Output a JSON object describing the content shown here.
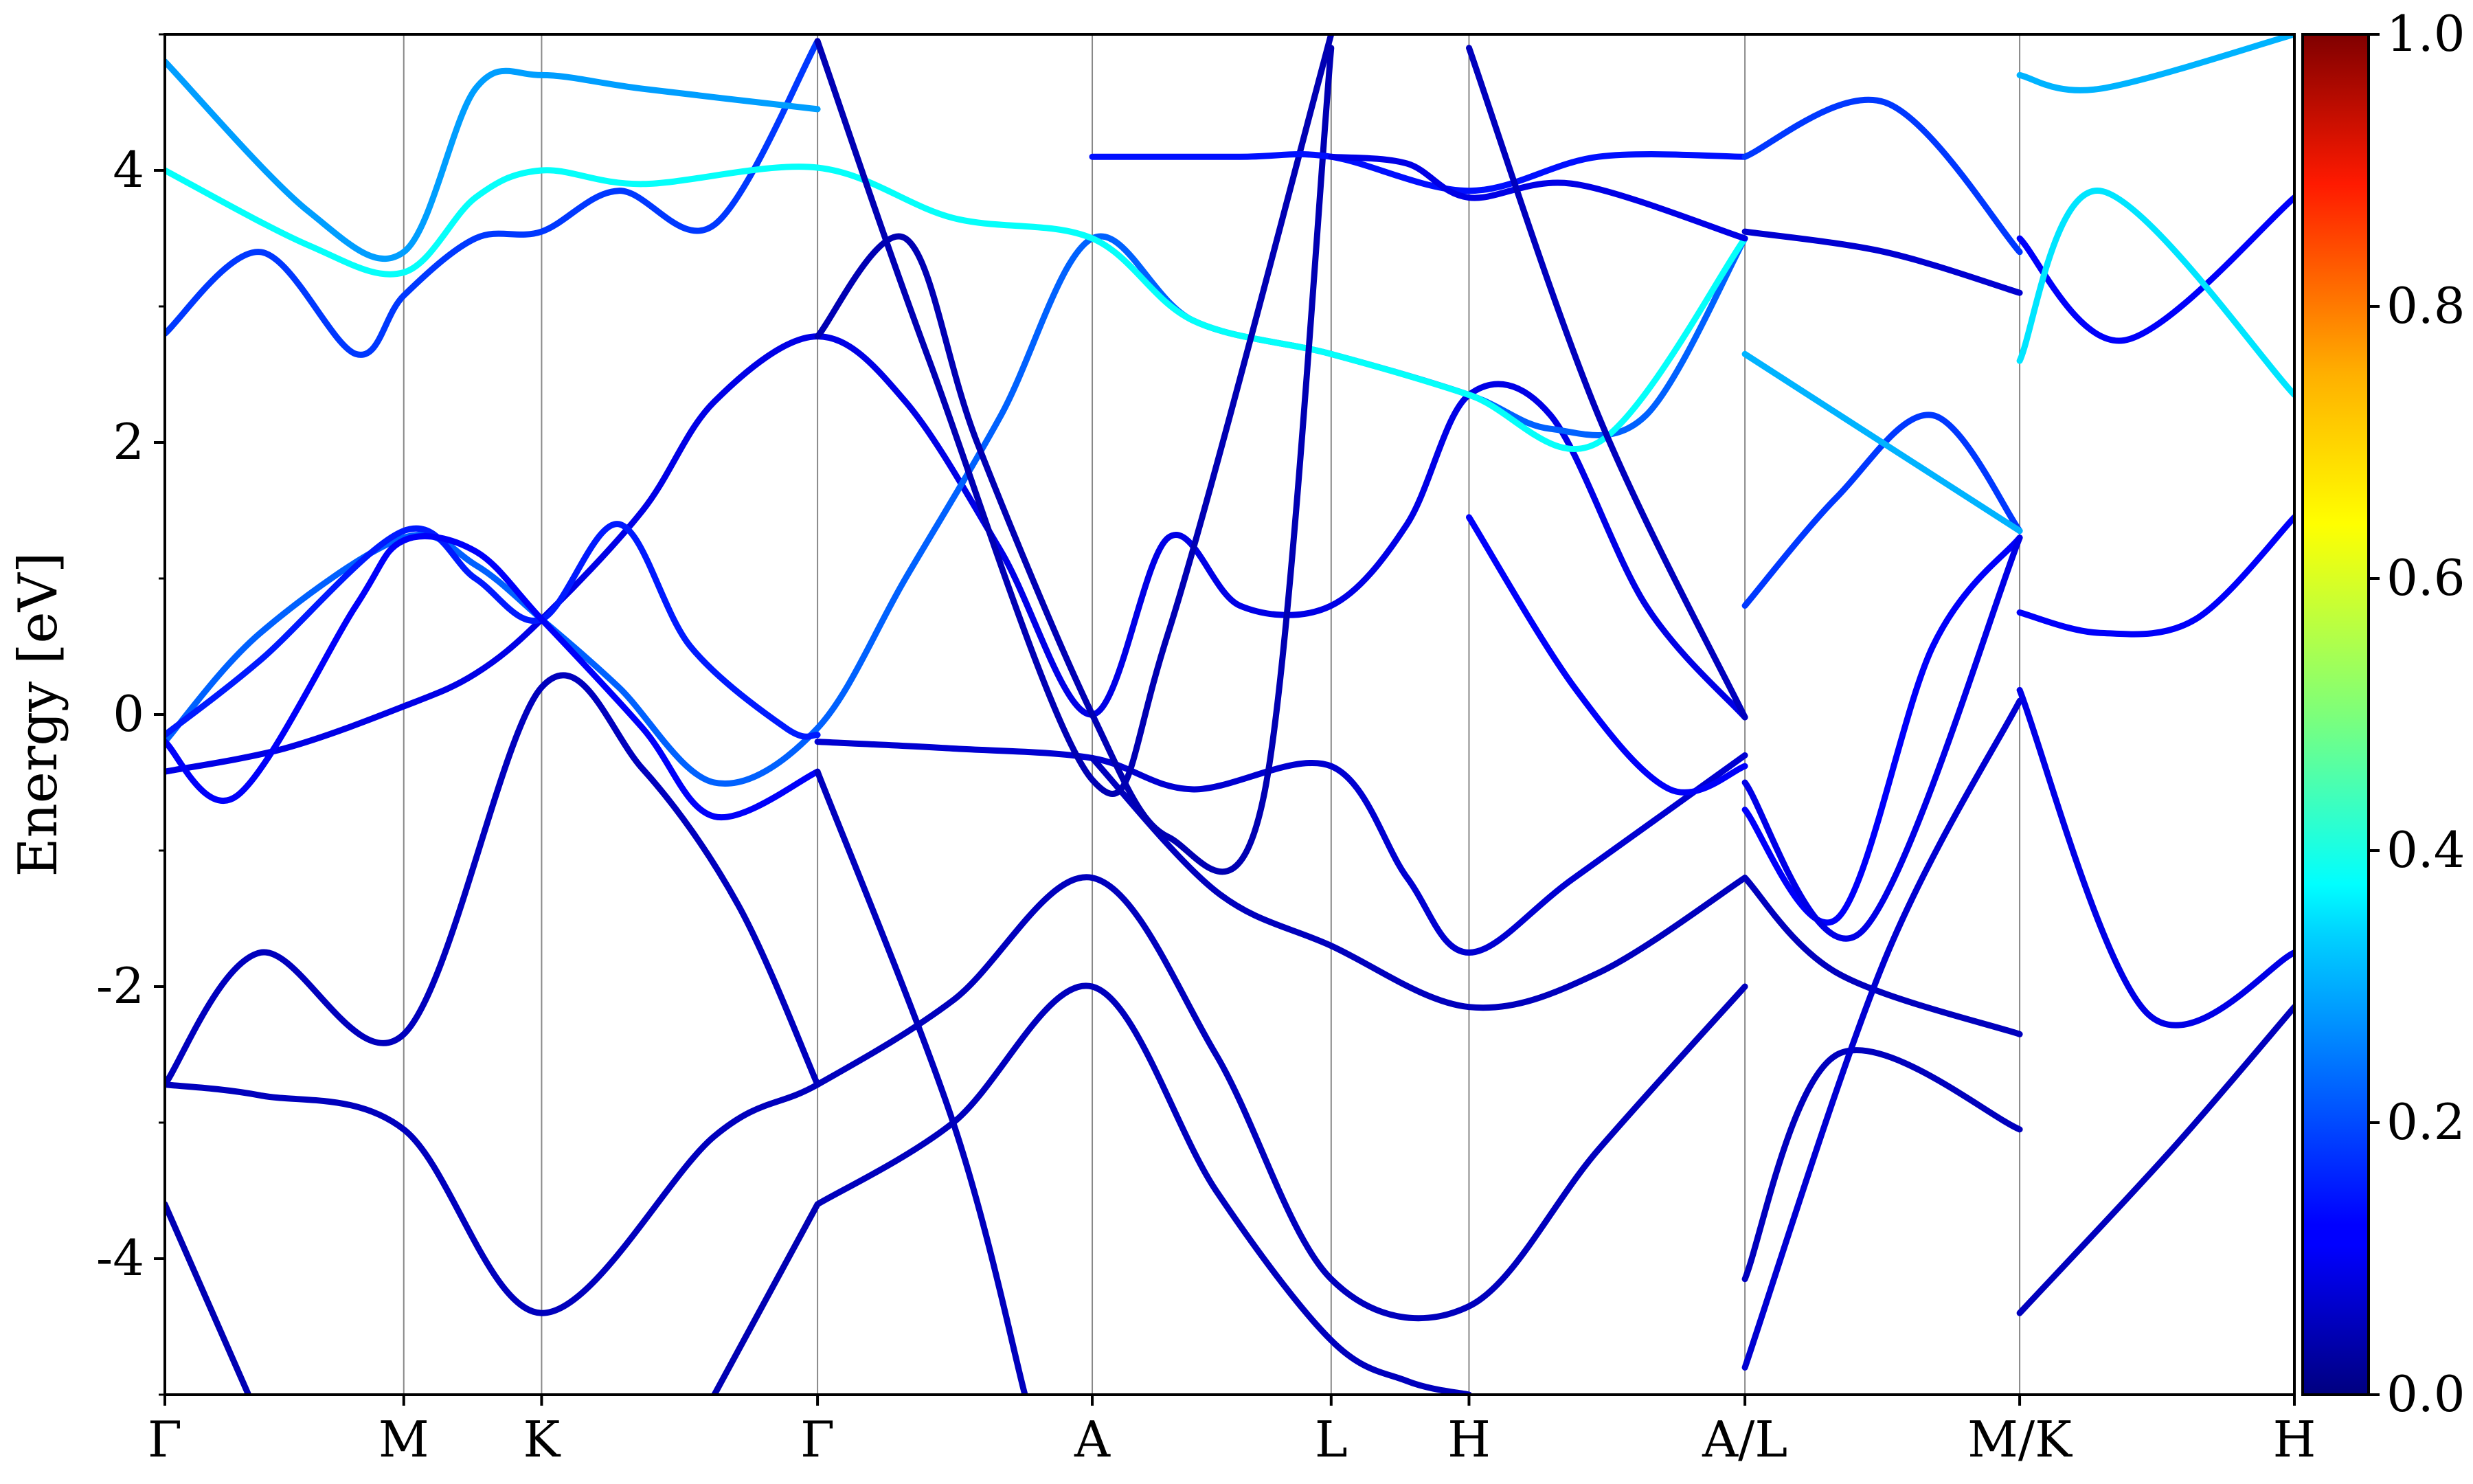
{
  "chart_data": {
    "type": "line",
    "title": "",
    "xlabel": "",
    "ylabel": "Energy [eV]",
    "ylim": [
      -5,
      5
    ],
    "y_ticks": [
      {
        "value": 4,
        "label": "4"
      },
      {
        "value": 2,
        "label": "2"
      },
      {
        "value": 0,
        "label": "0"
      },
      {
        "value": -2,
        "label": "-2"
      },
      {
        "value": -4,
        "label": "-4"
      }
    ],
    "kpath": [
      {
        "label": "Γ",
        "x": 0
      },
      {
        "label": "M",
        "x": 1
      },
      {
        "label": "K",
        "x": 1.577
      },
      {
        "label": "Γ",
        "x": 2.732
      },
      {
        "label": "A",
        "x": 3.882
      },
      {
        "label": "L",
        "x": 4.882
      },
      {
        "label": "H",
        "x": 5.459
      },
      {
        "label": "A/L",
        "x": 6.614
      },
      {
        "label": "M/K",
        "x": 7.764
      },
      {
        "label": "H",
        "x": 8.914
      }
    ],
    "colorbar": {
      "colormap": "jet",
      "range": [
        0,
        1
      ],
      "ticks": [
        {
          "value": 0,
          "label": "0.0"
        },
        {
          "value": 0.2,
          "label": "0.2"
        },
        {
          "value": 0.4,
          "label": "0.4"
        },
        {
          "value": 0.6,
          "label": "0.6"
        },
        {
          "value": 0.8,
          "label": "0.8"
        },
        {
          "value": 1.0,
          "label": "1.0"
        }
      ]
    },
    "series": [
      {
        "points": [
          [
            0,
            -0.42
          ],
          [
            0.5,
            -0.25
          ],
          [
            1,
            0.06
          ],
          [
            1.3,
            0.3
          ],
          [
            1.577,
            0.7
          ],
          [
            2.0,
            1.5
          ],
          [
            2.3,
            2.3
          ],
          [
            2.732,
            2.78
          ],
          [
            3.1,
            2.3
          ],
          [
            3.5,
            1.2
          ],
          [
            3.882,
            0.0
          ],
          [
            4.2,
            1.3
          ],
          [
            4.5,
            0.8
          ],
          [
            4.882,
            0.8
          ],
          [
            5.2,
            1.4
          ],
          [
            5.459,
            2.35
          ],
          [
            5.8,
            2.2
          ],
          [
            6.2,
            0.8
          ],
          [
            6.614,
            -0.02
          ]
        ],
        "weight": 0.1
      },
      {
        "points": [
          [
            0,
            -0.2
          ],
          [
            0.4,
            0.6
          ],
          [
            1,
            1.3
          ],
          [
            1.3,
            1.1
          ],
          [
            1.577,
            0.7
          ],
          [
            1.9,
            0.2
          ],
          [
            2.3,
            -0.5
          ],
          [
            2.732,
            -0.1
          ],
          [
            3.1,
            1.0
          ],
          [
            3.5,
            2.2
          ],
          [
            3.882,
            3.5
          ],
          [
            4.3,
            2.9
          ],
          [
            4.882,
            2.65
          ],
          [
            5.459,
            2.35
          ],
          [
            5.8,
            2.1
          ],
          [
            6.2,
            2.2
          ],
          [
            6.614,
            3.5
          ]
        ],
        "weight": 0.22
      },
      {
        "points": [
          [
            0,
            -0.15
          ],
          [
            0.4,
            0.4
          ],
          [
            1,
            1.35
          ],
          [
            1.3,
            1.0
          ],
          [
            1.577,
            0.7
          ],
          [
            1.9,
            1.4
          ],
          [
            2.2,
            0.5
          ],
          [
            2.6,
            -0.1
          ],
          [
            2.732,
            -0.15
          ]
        ],
        "weight": 0.15
      },
      {
        "points": [
          [
            0,
            -0.2
          ],
          [
            0.3,
            -0.6
          ],
          [
            0.8,
            0.8
          ],
          [
            1,
            1.28
          ],
          [
            1.3,
            1.2
          ],
          [
            1.577,
            0.7
          ],
          [
            2.0,
            -0.1
          ],
          [
            2.3,
            -0.75
          ],
          [
            2.732,
            -0.42
          ]
        ],
        "weight": 0.12
      },
      {
        "points": [
          [
            2.732,
            -0.2
          ],
          [
            3.3,
            -0.25
          ],
          [
            3.882,
            -0.32
          ],
          [
            4.3,
            -0.55
          ],
          [
            4.882,
            -0.38
          ],
          [
            5.2,
            -1.2
          ],
          [
            5.459,
            -1.75
          ],
          [
            5.9,
            -1.2
          ],
          [
            6.614,
            -0.3
          ]
        ],
        "weight": 0.08
      },
      {
        "points": [
          [
            3.882,
            -0.32
          ],
          [
            4.4,
            -1.3
          ],
          [
            4.882,
            -1.7
          ],
          [
            5.459,
            -2.15
          ],
          [
            6.0,
            -1.9
          ],
          [
            6.614,
            -1.2
          ]
        ],
        "weight": 0.06
      },
      {
        "points": [
          [
            0,
            -2.72
          ],
          [
            0.4,
            -2.8
          ],
          [
            1,
            -3.05
          ],
          [
            1.577,
            -4.4
          ],
          [
            2.3,
            -3.1
          ],
          [
            2.732,
            -2.72
          ],
          [
            3.3,
            -2.1
          ],
          [
            3.882,
            -1.2
          ],
          [
            4.4,
            -2.5
          ],
          [
            4.882,
            -4.15
          ],
          [
            5.459,
            -4.35
          ],
          [
            6.0,
            -3.2
          ],
          [
            6.614,
            -2.0
          ]
        ],
        "weight": 0.06
      },
      {
        "points": [
          [
            0,
            -2.72
          ],
          [
            0.4,
            -1.75
          ],
          [
            1,
            -2.35
          ],
          [
            1.577,
            0.2
          ],
          [
            2.0,
            -0.4
          ],
          [
            2.4,
            -1.4
          ],
          [
            2.732,
            -2.72
          ]
        ],
        "weight": 0.06
      },
      {
        "points": [
          [
            2.732,
            -3.6
          ],
          [
            3.3,
            -3.0
          ],
          [
            3.882,
            -2.0
          ],
          [
            4.4,
            -3.5
          ],
          [
            4.882,
            -4.6
          ],
          [
            5.2,
            -4.9
          ],
          [
            5.459,
            -5.0
          ]
        ],
        "weight": 0.06
      },
      {
        "points": [
          [
            0,
            -3.6
          ],
          [
            0.35,
            -5.0
          ]
        ],
        "weight": 0.05
      },
      {
        "points": [
          [
            2.3,
            -5.0
          ],
          [
            2.732,
            -3.6
          ]
        ],
        "weight": 0.05
      },
      {
        "points": [
          [
            2.732,
            -0.42
          ],
          [
            3.3,
            -3.0
          ],
          [
            3.6,
            -5.0
          ]
        ],
        "weight": 0.06
      },
      {
        "points": [
          [
            0,
            2.8
          ],
          [
            0.4,
            3.4
          ],
          [
            0.8,
            2.65
          ],
          [
            1,
            3.08
          ],
          [
            1.3,
            3.5
          ],
          [
            1.577,
            3.55
          ],
          [
            1.9,
            3.85
          ],
          [
            2.3,
            3.6
          ],
          [
            2.732,
            4.95
          ]
        ],
        "weight": 0.18
      },
      {
        "points": [
          [
            0,
            4.8
          ],
          [
            0.6,
            3.7
          ],
          [
            1,
            3.4
          ],
          [
            1.3,
            4.6
          ],
          [
            1.577,
            4.7
          ],
          [
            2.0,
            4.6
          ],
          [
            2.732,
            4.45
          ]
        ],
        "weight": 0.28
      },
      {
        "points": [
          [
            0,
            4.0
          ],
          [
            0.6,
            3.45
          ],
          [
            1,
            3.25
          ],
          [
            1.3,
            3.8
          ],
          [
            1.577,
            4.0
          ],
          [
            2.0,
            3.9
          ],
          [
            2.732,
            4.02
          ],
          [
            3.3,
            3.65
          ],
          [
            3.882,
            3.5
          ],
          [
            4.3,
            2.9
          ],
          [
            4.882,
            2.65
          ],
          [
            5.459,
            2.35
          ],
          [
            6.0,
            2.0
          ],
          [
            6.614,
            3.5
          ]
        ],
        "weight": 0.38
      },
      {
        "points": [
          [
            2.732,
            2.78
          ],
          [
            3.1,
            3.5
          ],
          [
            3.4,
            2.0
          ],
          [
            3.882,
            0.0
          ],
          [
            4.2,
            -0.9
          ],
          [
            4.6,
            -0.6
          ],
          [
            4.882,
            4.9
          ]
        ],
        "weight": 0.05
      },
      {
        "points": [
          [
            2.732,
            4.95
          ],
          [
            3.2,
            2.6
          ],
          [
            3.882,
            -0.48
          ],
          [
            4.2,
            0.6
          ],
          [
            4.882,
            5.0
          ]
        ],
        "weight": 0.05
      },
      {
        "points": [
          [
            3.882,
            4.1
          ],
          [
            4.5,
            4.1
          ],
          [
            4.882,
            4.1
          ],
          [
            5.459,
            3.85
          ],
          [
            6.0,
            4.1
          ],
          [
            6.614,
            4.1
          ]
        ],
        "weight": 0.14
      },
      {
        "points": [
          [
            4.882,
            4.1
          ],
          [
            5.2,
            4.05
          ],
          [
            5.459,
            3.8
          ],
          [
            5.9,
            3.9
          ],
          [
            6.614,
            3.5
          ]
        ],
        "weight": 0.1
      },
      {
        "points": [
          [
            5.459,
            1.45
          ],
          [
            5.9,
            0.2
          ],
          [
            6.3,
            -0.55
          ],
          [
            6.614,
            -0.38
          ]
        ],
        "weight": 0.12
      },
      {
        "points": [
          [
            5.459,
            4.9
          ],
          [
            6.0,
            2.2
          ],
          [
            6.614,
            -0.02
          ]
        ],
        "weight": 0.06
      },
      {
        "points": [
          [
            6.614,
            0.8
          ],
          [
            7.0,
            1.6
          ],
          [
            7.4,
            2.2
          ],
          [
            7.764,
            1.35
          ]
        ],
        "weight": 0.18
      },
      {
        "points": [
          [
            6.614,
            2.65
          ],
          [
            7.1,
            2.1
          ],
          [
            7.764,
            1.35
          ]
        ],
        "weight": 0.3
      },
      {
        "points": [
          [
            6.614,
            3.55
          ],
          [
            7.2,
            3.4
          ],
          [
            7.764,
            3.1
          ]
        ],
        "weight": 0.08
      },
      {
        "points": [
          [
            6.614,
            4.1
          ],
          [
            7.2,
            4.5
          ],
          [
            7.764,
            3.4
          ]
        ],
        "weight": 0.18
      },
      {
        "points": [
          [
            6.614,
            -0.7
          ],
          [
            7.0,
            -1.5
          ],
          [
            7.4,
            0.5
          ],
          [
            7.764,
            1.3
          ]
        ],
        "weight": 0.12
      },
      {
        "points": [
          [
            6.614,
            -0.5
          ],
          [
            7.1,
            -1.6
          ],
          [
            7.764,
            1.3
          ]
        ],
        "weight": 0.1
      },
      {
        "points": [
          [
            6.614,
            -1.2
          ],
          [
            7.0,
            -1.9
          ],
          [
            7.764,
            -2.35
          ]
        ],
        "weight": 0.06
      },
      {
        "points": [
          [
            6.614,
            -4.15
          ],
          [
            7.0,
            -2.5
          ],
          [
            7.764,
            -3.05
          ]
        ],
        "weight": 0.06
      },
      {
        "points": [
          [
            6.614,
            -4.8
          ],
          [
            7.2,
            -1.8
          ],
          [
            7.764,
            0.1
          ]
        ],
        "weight": 0.08
      },
      {
        "points": [
          [
            7.764,
            0.75
          ],
          [
            8.1,
            0.6
          ],
          [
            8.5,
            0.7
          ],
          [
            8.914,
            1.45
          ]
        ],
        "weight": 0.12
      },
      {
        "points": [
          [
            7.764,
            0.18
          ],
          [
            8.3,
            -2.2
          ],
          [
            8.914,
            -1.75
          ]
        ],
        "weight": 0.1
      },
      {
        "points": [
          [
            7.764,
            -4.4
          ],
          [
            8.4,
            -3.2
          ],
          [
            8.914,
            -2.15
          ]
        ],
        "weight": 0.06
      },
      {
        "points": [
          [
            7.764,
            3.5
          ],
          [
            8.2,
            2.75
          ],
          [
            8.914,
            3.8
          ]
        ],
        "weight": 0.12
      },
      {
        "points": [
          [
            7.764,
            2.6
          ],
          [
            8.1,
            3.85
          ],
          [
            8.914,
            2.35
          ]
        ],
        "weight": 0.35
      },
      {
        "points": [
          [
            7.764,
            4.7
          ],
          [
            8.1,
            4.6
          ],
          [
            8.914,
            5.0
          ]
        ],
        "weight": 0.3
      }
    ]
  }
}
